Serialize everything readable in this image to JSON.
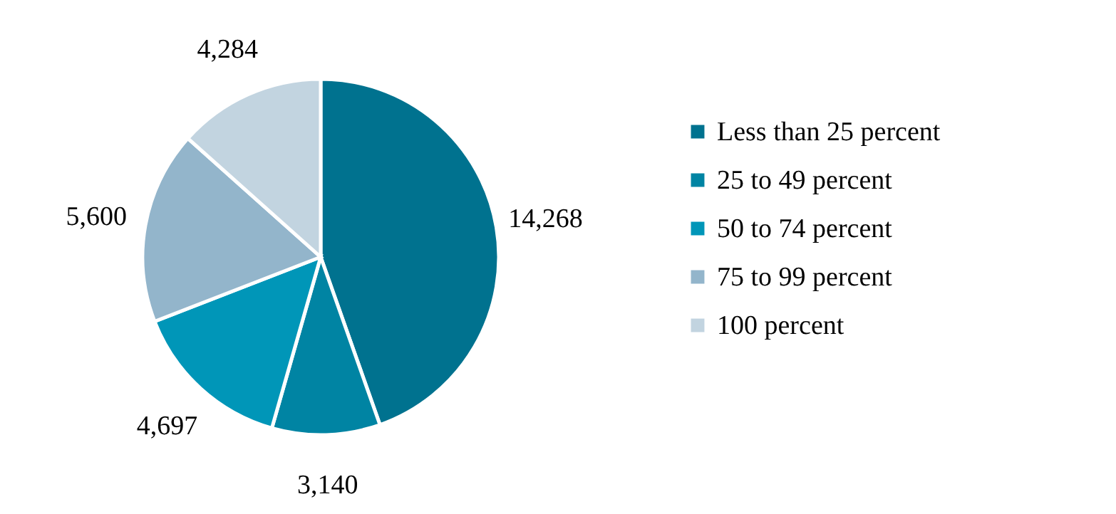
{
  "chart_data": {
    "type": "pie",
    "categories": [
      "Less than 25 percent",
      "25 to 49 percent",
      "50 to 74 percent",
      "75 to 99 percent",
      "100 percent"
    ],
    "values": [
      14268,
      3140,
      4697,
      5600,
      4284
    ],
    "colors": [
      "#00728f",
      "#0084a3",
      "#0096b8",
      "#93b5cb",
      "#c2d4e0"
    ],
    "value_labels": [
      "14,268",
      "3,140",
      "4,697",
      "5,600",
      "4,284"
    ],
    "legend": "right"
  }
}
